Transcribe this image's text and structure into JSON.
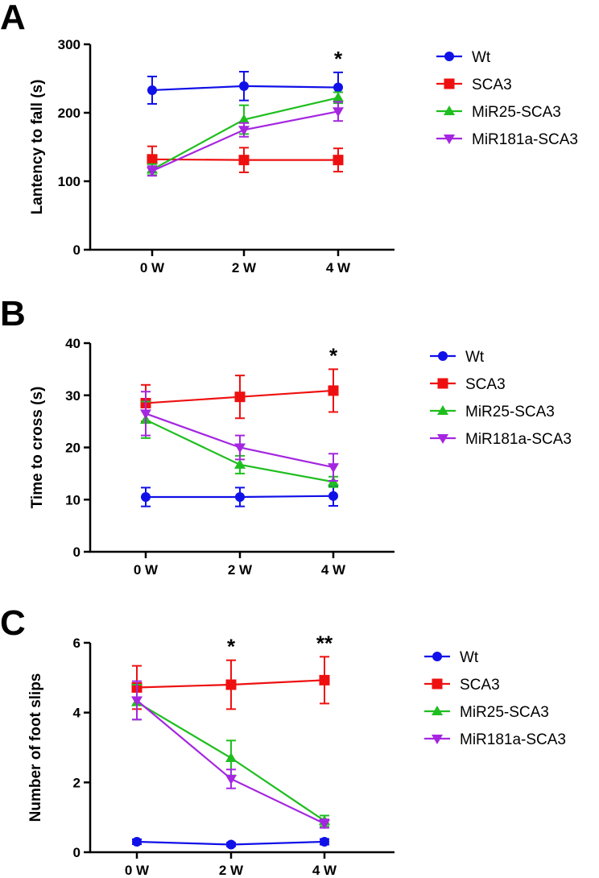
{
  "colors": {
    "Wt": "#1010e8",
    "SCA3": "#ee1010",
    "MiR25-SCA3": "#1fbe1f",
    "MiR181a-SCA3": "#a526e0"
  },
  "chart_data": [
    {
      "type": "line",
      "panel": "A",
      "title": "",
      "xlabel": "",
      "ylabel": "Lantency to fall (s)",
      "categories": [
        "0 W",
        "2 W",
        "4 W"
      ],
      "ylim": [
        0,
        300
      ],
      "yticks": [
        0,
        100,
        200,
        300
      ],
      "legend_position": "right",
      "annotations": [
        {
          "category_index": 2,
          "text": "*"
        }
      ],
      "series": [
        {
          "name": "Wt",
          "marker": "circle",
          "values": [
            233,
            239,
            237
          ],
          "errors": [
            20,
            21,
            22
          ]
        },
        {
          "name": "SCA3",
          "marker": "square",
          "values": [
            132,
            131,
            131
          ],
          "errors": [
            19,
            18,
            17
          ]
        },
        {
          "name": "MiR25-SCA3",
          "marker": "triangle-up",
          "values": [
            117,
            190,
            222
          ],
          "errors": [
            8,
            21,
            8
          ]
        },
        {
          "name": "MiR181a-SCA3",
          "marker": "triangle-down",
          "values": [
            115,
            175,
            202
          ],
          "errors": [
            7,
            10,
            14
          ]
        }
      ]
    },
    {
      "type": "line",
      "panel": "B",
      "title": "",
      "xlabel": "",
      "ylabel": "Time to cross (s)",
      "categories": [
        "0 W",
        "2 W",
        "4 W"
      ],
      "ylim": [
        0,
        40
      ],
      "yticks": [
        0,
        10,
        20,
        30,
        40
      ],
      "legend_position": "right",
      "annotations": [
        {
          "category_index": 2,
          "text": "*"
        }
      ],
      "series": [
        {
          "name": "Wt",
          "marker": "circle",
          "values": [
            10.5,
            10.5,
            10.7
          ],
          "errors": [
            1.8,
            1.8,
            1.9
          ]
        },
        {
          "name": "SCA3",
          "marker": "square",
          "values": [
            28.5,
            29.7,
            30.9
          ],
          "errors": [
            3.5,
            4.1,
            4.1
          ]
        },
        {
          "name": "MiR25-SCA3",
          "marker": "triangle-up",
          "values": [
            25.3,
            16.7,
            13.4
          ],
          "errors": [
            3.5,
            1.7,
            1.0
          ]
        },
        {
          "name": "MiR181a-SCA3",
          "marker": "triangle-down",
          "values": [
            26.5,
            20.0,
            16.2
          ],
          "errors": [
            4.2,
            2.3,
            2.6
          ]
        }
      ]
    },
    {
      "type": "line",
      "panel": "C",
      "title": "",
      "xlabel": "",
      "ylabel": "Number of foot slips",
      "categories": [
        "0 W",
        "2 W",
        "4 W"
      ],
      "ylim": [
        0,
        6
      ],
      "yticks": [
        0,
        2,
        4,
        6
      ],
      "legend_position": "right",
      "annotations": [
        {
          "category_index": 1,
          "text": "*"
        },
        {
          "category_index": 2,
          "text": "**"
        }
      ],
      "series": [
        {
          "name": "Wt",
          "marker": "circle",
          "values": [
            0.3,
            0.22,
            0.3
          ],
          "errors": [
            0.07,
            0.05,
            0.08
          ]
        },
        {
          "name": "SCA3",
          "marker": "square",
          "values": [
            4.72,
            4.8,
            4.93
          ],
          "errors": [
            0.62,
            0.7,
            0.67
          ]
        },
        {
          "name": "MiR25-SCA3",
          "marker": "triangle-up",
          "values": [
            4.3,
            2.7,
            0.9
          ],
          "errors": [
            0.5,
            0.5,
            0.15
          ]
        },
        {
          "name": "MiR181a-SCA3",
          "marker": "triangle-down",
          "values": [
            4.35,
            2.1,
            0.82
          ],
          "errors": [
            0.55,
            0.27,
            0.12
          ]
        }
      ]
    }
  ]
}
